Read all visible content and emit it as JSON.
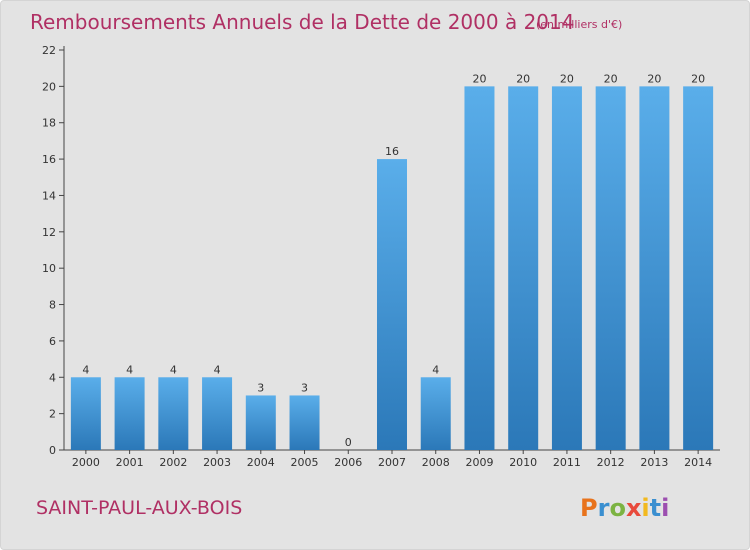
{
  "chart_data": {
    "type": "bar",
    "title": "Remboursements Annuels de la Dette de 2000 à 2014",
    "subtitle": "(en milliers d'€)",
    "categories": [
      "2000",
      "2001",
      "2002",
      "2003",
      "2004",
      "2005",
      "2006",
      "2007",
      "2008",
      "2009",
      "2010",
      "2011",
      "2012",
      "2013",
      "2014"
    ],
    "values": [
      4,
      4,
      4,
      4,
      3,
      3,
      0,
      16,
      4,
      20,
      20,
      20,
      20,
      20,
      20
    ],
    "ylim": [
      0,
      22
    ],
    "yticks": [
      0,
      2,
      4,
      6,
      8,
      10,
      12,
      14,
      16,
      18,
      20,
      22
    ],
    "grid": false,
    "colors": {
      "bar_top": "#5aaeea",
      "bar_bottom": "#2b78b8",
      "title": "#b03064"
    }
  },
  "footer": {
    "commune": "SAINT-PAUL-AUX-BOIS",
    "logo_text": "Proxiti",
    "logo_colors": [
      "#e8731c",
      "#3a8fd0",
      "#7cb342",
      "#e84a3c",
      "#f2b91f",
      "#3a8fd0",
      "#9c4fb0"
    ]
  }
}
